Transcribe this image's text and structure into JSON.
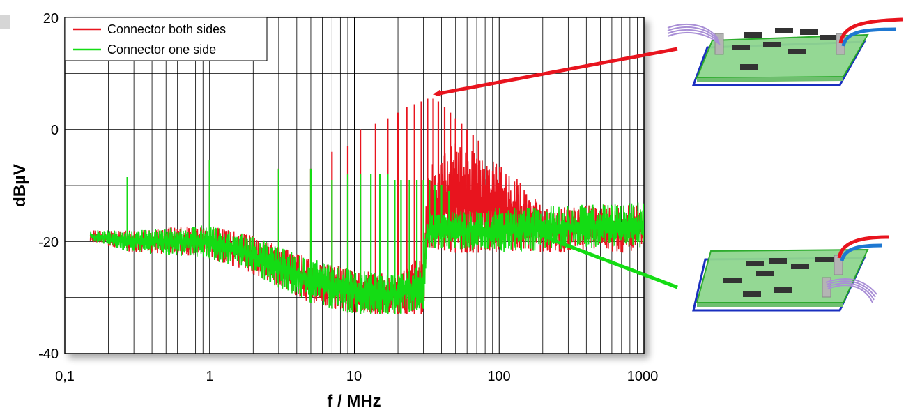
{
  "chart_data": {
    "type": "line",
    "xlabel": "f / MHz",
    "ylabel": "dBµV",
    "x_scale": "log",
    "xlim": [
      0.1,
      1000
    ],
    "ylim": [
      -40,
      20
    ],
    "x_ticks": [
      0.1,
      1,
      10,
      100,
      1000
    ],
    "x_tick_labels": [
      "0,1",
      "1",
      "10",
      "100",
      "1000"
    ],
    "y_ticks": [
      -40,
      -20,
      0,
      20
    ],
    "y_tick_labels": [
      "-40",
      "-20",
      "0",
      "20"
    ],
    "grid": true,
    "legend_position": "top-left",
    "series": [
      {
        "name": "Connector both sides",
        "color": "#e8141e",
        "envelope_low": [
          [
            0.15,
            -20
          ],
          [
            0.3,
            -22
          ],
          [
            1,
            -23
          ],
          [
            2,
            -26
          ],
          [
            5,
            -31
          ],
          [
            10,
            -33
          ],
          [
            20,
            -33
          ],
          [
            30,
            -33
          ],
          [
            32,
            -21
          ],
          [
            50,
            -22
          ],
          [
            100,
            -22
          ],
          [
            200,
            -22
          ],
          [
            1000,
            -22
          ]
        ],
        "envelope_high": [
          [
            0.15,
            -18
          ],
          [
            0.3,
            -18
          ],
          [
            1,
            -17
          ],
          [
            2,
            -19
          ],
          [
            5,
            -23
          ],
          [
            10,
            -25
          ],
          [
            20,
            -26
          ],
          [
            30,
            -22
          ],
          [
            32,
            -7
          ],
          [
            50,
            -2
          ],
          [
            100,
            -6
          ],
          [
            150,
            -10
          ],
          [
            200,
            -14
          ],
          [
            1000,
            -13
          ]
        ],
        "spikes": [
          [
            0.27,
            -8.5
          ],
          [
            1,
            -5.5
          ],
          [
            3,
            -7
          ],
          [
            5,
            -7
          ],
          [
            7,
            -4
          ],
          [
            9,
            -3
          ],
          [
            11,
            0
          ],
          [
            14,
            1
          ],
          [
            17,
            2
          ],
          [
            20,
            3
          ],
          [
            23,
            4
          ],
          [
            26,
            4.5
          ],
          [
            29,
            5
          ],
          [
            32,
            5.5
          ],
          [
            35,
            5.5
          ],
          [
            38,
            5
          ],
          [
            42,
            4
          ],
          [
            46,
            3
          ],
          [
            50,
            2
          ],
          [
            55,
            1
          ],
          [
            60,
            0
          ],
          [
            66,
            -1
          ],
          [
            72,
            -2
          ]
        ]
      },
      {
        "name": "Connector one side",
        "color": "#14dc14",
        "envelope_low": [
          [
            0.15,
            -20
          ],
          [
            0.3,
            -22
          ],
          [
            1,
            -23
          ],
          [
            2,
            -26
          ],
          [
            5,
            -31
          ],
          [
            10,
            -33
          ],
          [
            20,
            -33
          ],
          [
            30,
            -32
          ],
          [
            32,
            -21
          ],
          [
            100,
            -22
          ],
          [
            1000,
            -21
          ]
        ],
        "envelope_high": [
          [
            0.15,
            -18
          ],
          [
            0.3,
            -18
          ],
          [
            1,
            -17
          ],
          [
            2,
            -19
          ],
          [
            5,
            -23
          ],
          [
            10,
            -25
          ],
          [
            20,
            -26
          ],
          [
            30,
            -23
          ],
          [
            32,
            -15
          ],
          [
            100,
            -14
          ],
          [
            1000,
            -13
          ]
        ],
        "spikes": [
          [
            0.27,
            -8.5
          ],
          [
            1,
            -5.5
          ],
          [
            3,
            -7
          ],
          [
            5,
            -7
          ],
          [
            7,
            -9
          ],
          [
            9,
            -8
          ],
          [
            11,
            -8
          ],
          [
            13,
            -8
          ],
          [
            15,
            -8
          ],
          [
            17,
            -8
          ],
          [
            19,
            -9
          ],
          [
            21,
            -9
          ],
          [
            24,
            -9
          ],
          [
            27,
            -9
          ],
          [
            30,
            -9
          ],
          [
            33,
            -9
          ],
          [
            36,
            -10
          ],
          [
            40,
            -10
          ],
          [
            45,
            -11
          ]
        ]
      }
    ],
    "annotation_targets": [
      {
        "series": "Connector both sides",
        "x": 33,
        "y": 6
      },
      {
        "series": "Connector one side",
        "x": 200,
        "y": -19
      }
    ]
  },
  "illustrations": {
    "board_both_sides_icon": "pcb-with-two-side-connectors",
    "board_one_side_icon": "pcb-with-one-side-connectors"
  }
}
